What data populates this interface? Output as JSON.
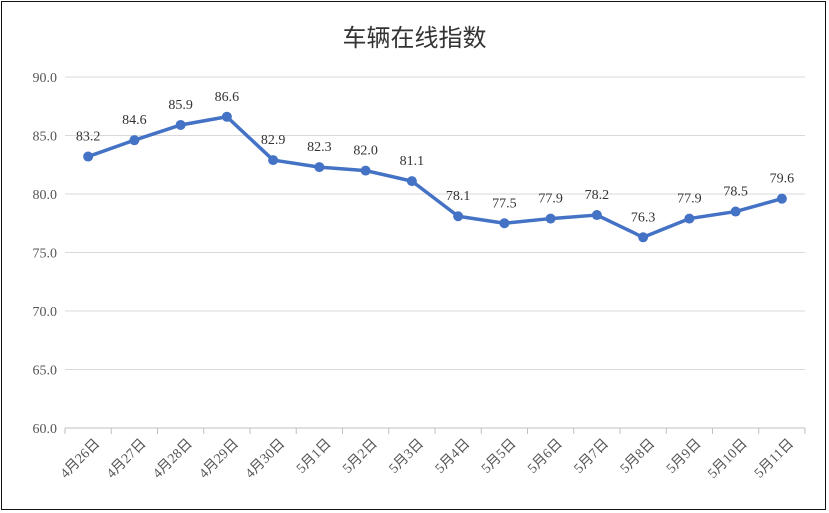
{
  "chart_data": {
    "type": "line",
    "title": "车辆在线指数",
    "xlabel": "",
    "ylabel": "",
    "ylim": [
      60,
      90
    ],
    "yticks": [
      "60.0",
      "65.0",
      "70.0",
      "75.0",
      "80.0",
      "85.0",
      "90.0"
    ],
    "grid": true,
    "categories": [
      "4月26日",
      "4月27日",
      "4月28日",
      "4月29日",
      "4月30日",
      "5月1日",
      "5月2日",
      "5月3日",
      "5月4日",
      "5月5日",
      "5月6日",
      "5月7日",
      "5月8日",
      "5月9日",
      "5月10日",
      "5月11日"
    ],
    "values": [
      83.2,
      84.6,
      85.9,
      86.6,
      82.9,
      82.3,
      82.0,
      81.1,
      78.1,
      77.5,
      77.9,
      78.2,
      76.3,
      77.9,
      78.5,
      79.6
    ],
    "labels": [
      "83.2",
      "84.6",
      "85.9",
      "86.6",
      "82.9",
      "82.3",
      "82.0",
      "81.1",
      "78.1",
      "77.5",
      "77.9",
      "78.2",
      "76.3",
      "77.9",
      "78.5",
      "79.6"
    ],
    "line_color": "#4472C4",
    "grid_color": "#D9D9D9"
  }
}
